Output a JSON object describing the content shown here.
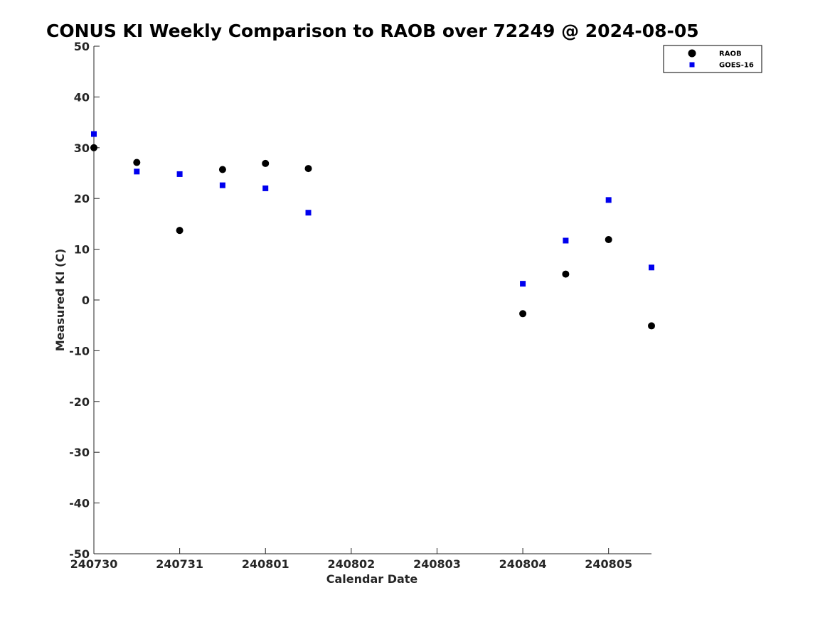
{
  "chart_data": {
    "type": "scatter",
    "title": "CONUS KI Weekly Comparison to RAOB over 72249 @ 2024-08-05",
    "xlabel": "Calendar Date",
    "ylabel": "Measured KI (C)",
    "xlim": [
      0,
      6.5
    ],
    "ylim": [
      -50,
      50
    ],
    "x_ticks": [
      {
        "value": 0,
        "label": "240730"
      },
      {
        "value": 1,
        "label": "240731"
      },
      {
        "value": 2,
        "label": "240801"
      },
      {
        "value": 3,
        "label": "240802"
      },
      {
        "value": 4,
        "label": "240803"
      },
      {
        "value": 5,
        "label": "240804"
      },
      {
        "value": 6,
        "label": "240805"
      }
    ],
    "y_ticks": [
      {
        "value": 50,
        "label": "50"
      },
      {
        "value": 40,
        "label": "40"
      },
      {
        "value": 30,
        "label": "30"
      },
      {
        "value": 20,
        "label": "20"
      },
      {
        "value": 10,
        "label": "10"
      },
      {
        "value": 0,
        "label": "0"
      },
      {
        "value": -10,
        "label": "-10"
      },
      {
        "value": -20,
        "label": "-20"
      },
      {
        "value": -30,
        "label": "-30"
      },
      {
        "value": -40,
        "label": "-40"
      },
      {
        "value": -50,
        "label": "-50"
      }
    ],
    "grid": false,
    "legend_position": "top-right",
    "series": [
      {
        "name": "RAOB",
        "marker": "circle",
        "color": "#000000",
        "points": [
          {
            "x": 0.0,
            "y": 30.0
          },
          {
            "x": 0.5,
            "y": 27.1
          },
          {
            "x": 1.0,
            "y": 13.7
          },
          {
            "x": 1.5,
            "y": 25.7
          },
          {
            "x": 2.0,
            "y": 26.9
          },
          {
            "x": 2.5,
            "y": 25.9
          },
          {
            "x": 5.0,
            "y": -2.7
          },
          {
            "x": 5.5,
            "y": 5.1
          },
          {
            "x": 6.0,
            "y": 11.9
          },
          {
            "x": 6.5,
            "y": -5.1
          }
        ]
      },
      {
        "name": "GOES-16",
        "marker": "square",
        "color": "#0000ee",
        "points": [
          {
            "x": 0.0,
            "y": 32.7
          },
          {
            "x": 0.5,
            "y": 25.3
          },
          {
            "x": 1.0,
            "y": 24.8
          },
          {
            "x": 1.5,
            "y": 22.6
          },
          {
            "x": 2.0,
            "y": 22.0
          },
          {
            "x": 2.5,
            "y": 17.2
          },
          {
            "x": 5.0,
            "y": 3.2
          },
          {
            "x": 5.5,
            "y": 11.7
          },
          {
            "x": 6.0,
            "y": 19.7
          },
          {
            "x": 6.5,
            "y": 6.4
          }
        ]
      }
    ]
  }
}
